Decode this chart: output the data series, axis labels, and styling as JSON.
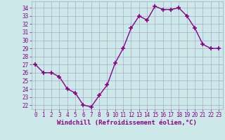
{
  "x": [
    0,
    1,
    2,
    3,
    4,
    5,
    6,
    7,
    8,
    9,
    10,
    11,
    12,
    13,
    14,
    15,
    16,
    17,
    18,
    19,
    20,
    21,
    22,
    23
  ],
  "y": [
    27,
    26,
    26,
    25.5,
    24,
    23.5,
    22,
    21.8,
    23.2,
    24.5,
    27.2,
    29,
    31.5,
    33,
    32.5,
    34.2,
    33.8,
    33.8,
    34,
    33,
    31.5,
    29.5,
    29,
    29
  ],
  "line_color": "#880088",
  "marker": "+",
  "marker_size": 4,
  "xlabel": "Windchill (Refroidissement éolien,°C)",
  "xlabel_fontsize": 6.5,
  "xtick_labels": [
    "0",
    "1",
    "2",
    "3",
    "4",
    "5",
    "6",
    "7",
    "8",
    "9",
    "10",
    "11",
    "12",
    "13",
    "14",
    "15",
    "16",
    "17",
    "18",
    "19",
    "20",
    "21",
    "22",
    "23"
  ],
  "ytick_values": [
    22,
    23,
    24,
    25,
    26,
    27,
    28,
    29,
    30,
    31,
    32,
    33,
    34
  ],
  "ylim": [
    21.5,
    34.8
  ],
  "xlim": [
    -0.5,
    23.5
  ],
  "background_color": "#cce8e8",
  "grid_color": "#aaaacc",
  "tick_color": "#880088",
  "tick_fontsize": 5.5,
  "line_width": 1.0,
  "marker_color": "#880088"
}
